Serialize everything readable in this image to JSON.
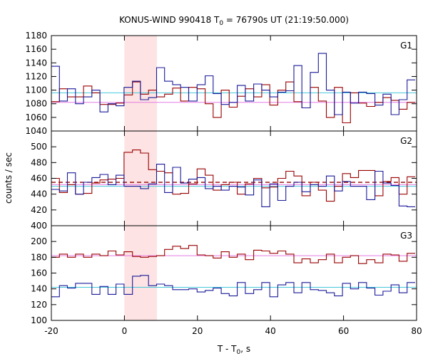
{
  "title": {
    "prefix": "KONUS-WIND 990418 T",
    "sub": "0",
    "suffix": " = 76790s UT (21:19:50.000)"
  },
  "x_axis": {
    "label_prefix": "T - T",
    "label_sub": "0",
    "label_suffix": ", s"
  },
  "y_axis": {
    "label": "counts / sec"
  },
  "chart_data": {
    "type": "line",
    "style": "histogram-step",
    "x_range": [
      -20,
      80
    ],
    "x_ticks": [
      -20,
      0,
      20,
      40,
      60,
      80
    ],
    "grid": false,
    "highlight_interval": {
      "x_start": 0,
      "x_end": 8.9,
      "color": "#fde3e3"
    },
    "colors": {
      "red_series": "#990000",
      "blue_series": "#1a1a99",
      "magenta_level": "#e37ce3",
      "cyan_level": "#45c8d8"
    },
    "bin_edges": [
      -20,
      -17.8,
      -15.6,
      -13.4,
      -11.2,
      -8.9,
      -6.7,
      -4.5,
      -2.3,
      -0.1,
      2.2,
      4.4,
      6.6,
      8.8,
      11,
      13.2,
      15.4,
      17.6,
      19.9,
      22.1,
      24.3,
      26.5,
      28.7,
      30.9,
      33.1,
      35.4,
      37.6,
      39.8,
      42,
      44.2,
      46.4,
      48.6,
      50.9,
      53.1,
      55.3,
      57.5,
      59.7,
      61.9,
      64.1,
      66.3,
      68.6,
      70.8,
      73,
      75.2,
      77.4,
      79.6
    ],
    "panels": [
      {
        "label": "G1",
        "y_range": [
          1040,
          1180
        ],
        "y_ticks": [
          1040,
          1060,
          1080,
          1100,
          1120,
          1140,
          1160,
          1180
        ],
        "bg_levels": [
          {
            "value": 1082,
            "color": "#e37ce3",
            "dashed": false
          },
          {
            "value": 1096,
            "color": "#45c8d8",
            "dashed": false
          }
        ],
        "series": [
          {
            "color": "#990000",
            "values": [
              1083,
              1102,
              1090,
              1090,
              1106,
              1096,
              1079,
              1079,
              1081,
              1093,
              1112,
              1094,
              1100,
              1090,
              1094,
              1103,
              1084,
              1104,
              1102,
              1080,
              1060,
              1100,
              1075,
              1091,
              1102,
              1090,
              1108,
              1078,
              1100,
              1112,
              1083,
              1074,
              1104,
              1084,
              1060,
              1104,
              1052,
              1096,
              1081,
              1076,
              1082,
              1089,
              1085,
              1072,
              1082
            ]
          },
          {
            "color": "#1a1a99",
            "values": [
              1135,
              1084,
              1102,
              1080,
              1090,
              1100,
              1068,
              1080,
              1077,
              1104,
              1113,
              1086,
              1089,
              1133,
              1113,
              1108,
              1104,
              1084,
              1108,
              1121,
              1095,
              1079,
              1082,
              1107,
              1084,
              1109,
              1100,
              1090,
              1097,
              1099,
              1136,
              1074,
              1126,
              1154,
              1100,
              1064,
              1097,
              1081,
              1097,
              1095,
              1078,
              1094,
              1064,
              1086,
              1115
            ]
          }
        ]
      },
      {
        "label": "G2",
        "y_range": [
          400,
          520
        ],
        "y_ticks": [
          400,
          420,
          440,
          460,
          480,
          500
        ],
        "bg_levels": [
          {
            "value": 455,
            "color": "#990000",
            "dashed": true
          },
          {
            "value": 452,
            "color": "#e37ce3",
            "dashed": false
          },
          {
            "value": 450,
            "color": "#45c8d8",
            "dashed": false
          }
        ],
        "series": [
          {
            "color": "#990000",
            "values": [
              460,
              442,
              452,
              440,
              441,
              454,
              458,
              459,
              460,
              493,
              496,
              492,
              471,
              469,
              467,
              440,
              441,
              453,
              472,
              464,
              445,
              452,
              455,
              440,
              453,
              460,
              448,
              449,
              460,
              469,
              463,
              438,
              455,
              445,
              431,
              450,
              466,
              461,
              470,
              470,
              438,
              456,
              461,
              440,
              462
            ]
          },
          {
            "color": "#1a1a99",
            "values": [
              446,
              444,
              467,
              440,
              455,
              461,
              465,
              452,
              464,
              450,
              450,
              447,
              453,
              478,
              442,
              474,
              454,
              459,
              461,
              447,
              450,
              445,
              450,
              449,
              439,
              458,
              424,
              453,
              432,
              450,
              455,
              443,
              452,
              450,
              463,
              444,
              456,
              450,
              450,
              433,
              469,
              454,
              451,
              425,
              424
            ]
          }
        ]
      },
      {
        "label": "G3",
        "y_range": [
          100,
          220
        ],
        "y_ticks": [
          100,
          120,
          140,
          160,
          180,
          200
        ],
        "bg_levels": [
          {
            "value": 182,
            "color": "#e37ce3",
            "dashed": false
          },
          {
            "value": 142,
            "color": "#45c8d8",
            "dashed": false
          }
        ],
        "series": [
          {
            "color": "#990000",
            "values": [
              180,
              184,
              180,
              184,
              180,
              184,
              182,
              188,
              183,
              187,
              181,
              180,
              181,
              182,
              190,
              194,
              191,
              195,
              183,
              182,
              179,
              187,
              180,
              184,
              177,
              189,
              188,
              185,
              188,
              184,
              173,
              178,
              173,
              177,
              184,
              173,
              180,
              182,
              172,
              177,
              173,
              184,
              183,
              175,
              185
            ]
          },
          {
            "color": "#1a1a99",
            "values": [
              130,
              144,
              141,
              147,
              147,
              133,
              143,
              133,
              146,
              133,
              156,
              157,
              144,
              146,
              144,
              139,
              139,
              140,
              136,
              138,
              141,
              134,
              131,
              148,
              134,
              139,
              148,
              130,
              145,
              148,
              135,
              148,
              139,
              138,
              135,
              131,
              147,
              140,
              148,
              141,
              132,
              137,
              145,
              135,
              148
            ]
          }
        ]
      }
    ]
  }
}
